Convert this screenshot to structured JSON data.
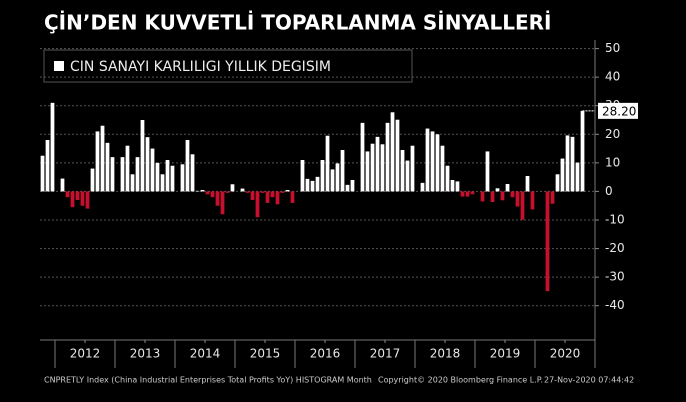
{
  "chart_data": {
    "type": "bar",
    "title": "ÇİN’DEN KUVVETLİ TOPARLANMA SİNYALLERİ",
    "legend": "CIN SANAYI KARLILIGI YILLIK DEGISIM",
    "footer": [
      "CNPRETLY Index (China Industrial Enterprises Total Profits YoY) HISTOGRAM  Month",
      "Copyright© 2020 Bloomberg Finance L.P.",
      "27-Nov-2020 07:44:42"
    ],
    "color_positive": "#ffffff",
    "color_negative": "#c8102e",
    "grid": true,
    "xlim": [
      2011.75,
      2021.0
    ],
    "xticks": [
      {
        "value": 2012.5,
        "label": "2012"
      },
      {
        "value": 2013.5,
        "label": "2013"
      },
      {
        "value": 2014.5,
        "label": "2014"
      },
      {
        "value": 2015.5,
        "label": "2015"
      },
      {
        "value": 2016.5,
        "label": "2016"
      },
      {
        "value": 2017.5,
        "label": "2017"
      },
      {
        "value": 2018.5,
        "label": "2018"
      },
      {
        "value": 2019.5,
        "label": "2019"
      },
      {
        "value": 2020.5,
        "label": "2020"
      }
    ],
    "ylim": [
      -52,
      53
    ],
    "yticks": [
      -40,
      -30,
      -20,
      -10,
      0,
      10,
      20,
      30,
      40,
      50
    ],
    "x": [
      2011.792,
      2011.875,
      2011.958,
      2012.125,
      2012.208,
      2012.292,
      2012.375,
      2012.458,
      2012.542,
      2012.625,
      2012.708,
      2012.792,
      2012.875,
      2012.958,
      2013.125,
      2013.208,
      2013.292,
      2013.375,
      2013.458,
      2013.542,
      2013.625,
      2013.708,
      2013.792,
      2013.875,
      2013.958,
      2014.125,
      2014.208,
      2014.292,
      2014.375,
      2014.458,
      2014.542,
      2014.625,
      2014.708,
      2014.792,
      2014.875,
      2014.958,
      2015.125,
      2015.208,
      2015.292,
      2015.375,
      2015.458,
      2015.542,
      2015.625,
      2015.708,
      2015.792,
      2015.875,
      2015.958,
      2016.125,
      2016.208,
      2016.292,
      2016.375,
      2016.458,
      2016.542,
      2016.625,
      2016.708,
      2016.792,
      2016.875,
      2016.958,
      2017.125,
      2017.208,
      2017.292,
      2017.375,
      2017.458,
      2017.542,
      2017.625,
      2017.708,
      2017.792,
      2017.875,
      2017.958,
      2018.125,
      2018.208,
      2018.292,
      2018.375,
      2018.458,
      2018.542,
      2018.625,
      2018.708,
      2018.792,
      2018.875,
      2018.958,
      2019.125,
      2019.208,
      2019.292,
      2019.375,
      2019.458,
      2019.542,
      2019.625,
      2019.708,
      2019.792,
      2019.875,
      2019.958,
      2020.208,
      2020.292,
      2020.375,
      2020.458,
      2020.542,
      2020.625,
      2020.708,
      2020.792
    ],
    "values": [
      12.5,
      18,
      31,
      4.5,
      -2,
      -5.5,
      -3,
      -5,
      -6,
      8,
      21,
      23,
      17,
      12,
      12,
      16,
      6,
      12,
      25,
      19,
      15,
      10,
      6,
      11,
      9,
      9.5,
      18,
      13,
      0.2,
      0.5,
      -1,
      -2,
      -5,
      -8,
      -0.5,
      2.5,
      1,
      -0.5,
      -3,
      -9,
      -0.5,
      -4,
      -2,
      -4.5,
      -0.5,
      0.5,
      -4,
      11,
      4.4,
      3.7,
      5.1,
      11,
      19.5,
      7.7,
      9.8,
      14.5,
      2.3,
      4,
      24,
      14,
      16.7,
      19.1,
      16.5,
      24,
      27.7,
      25.1,
      14.5,
      10.8,
      16,
      3,
      22,
      21,
      20,
      16,
      9,
      4,
      3.5,
      -1.8,
      -1.8,
      -1,
      -3.5,
      14,
      -3.7,
      1.1,
      -3.1,
      2.6,
      -2,
      -5.3,
      -9.9,
      5.4,
      -6.3,
      -34.9,
      -4.3,
      6,
      11.5,
      19.6,
      19.1,
      10.1,
      28.2
    ],
    "value_labels": [
      null,
      null,
      null,
      null,
      null,
      null,
      null,
      null,
      null,
      null,
      null,
      null,
      null,
      null,
      null,
      null,
      null,
      null,
      null,
      null,
      null,
      null,
      null,
      null,
      null,
      null,
      null,
      null,
      null,
      null,
      null,
      null,
      null,
      null,
      null,
      null,
      null,
      null,
      null,
      null,
      null,
      null,
      null,
      null,
      null,
      null,
      null,
      null,
      null,
      null,
      null,
      null,
      null,
      null,
      null,
      null,
      null,
      null,
      null,
      null,
      null,
      null,
      null,
      null,
      null,
      null,
      null,
      null,
      null,
      null,
      null,
      null,
      null,
      null,
      null,
      null,
      null,
      null,
      null,
      null,
      null,
      null,
      null,
      null,
      null,
      null,
      null,
      null,
      null,
      null,
      null,
      null,
      null,
      null,
      null,
      null,
      null,
      null,
      "28.20"
    ]
  }
}
